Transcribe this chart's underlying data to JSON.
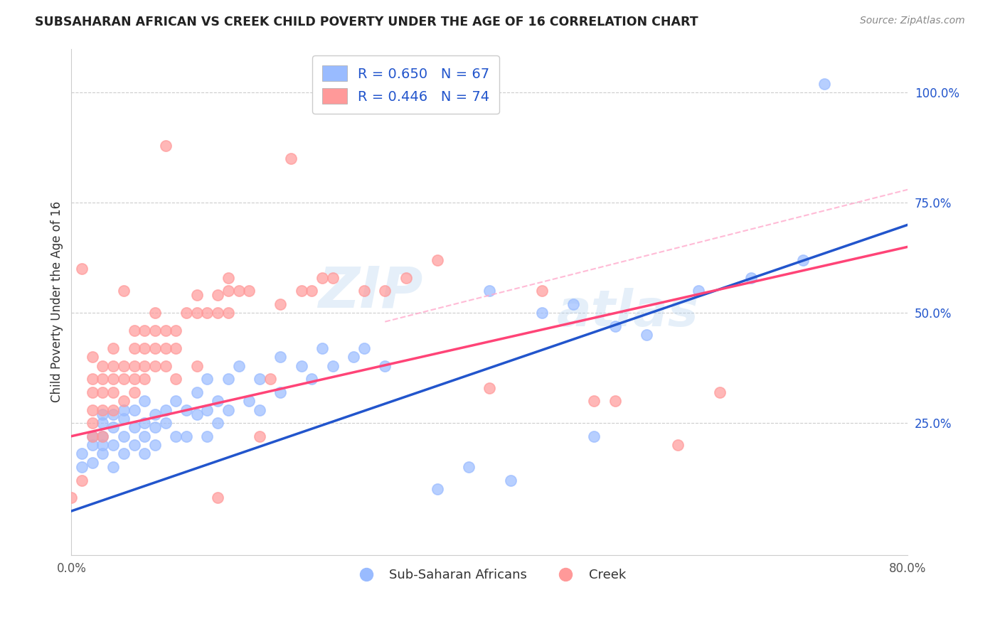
{
  "title": "SUBSAHARAN AFRICAN VS CREEK CHILD POVERTY UNDER THE AGE OF 16 CORRELATION CHART",
  "source": "Source: ZipAtlas.com",
  "ylabel": "Child Poverty Under the Age of 16",
  "xlim": [
    0.0,
    0.8
  ],
  "ylim": [
    -0.05,
    1.1
  ],
  "ytick_vals": [
    0.0,
    0.25,
    0.5,
    0.75,
    1.0
  ],
  "ytick_labels": [
    "",
    "25.0%",
    "50.0%",
    "75.0%",
    "100.0%"
  ],
  "xtick_vals": [
    0.0,
    0.1,
    0.2,
    0.3,
    0.4,
    0.5,
    0.6,
    0.7,
    0.8
  ],
  "xtick_labels": [
    "0.0%",
    "",
    "",
    "",
    "",
    "",
    "",
    "",
    "80.0%"
  ],
  "blue_color": "#99BBFF",
  "pink_color": "#FF9999",
  "blue_line_color": "#2255CC",
  "pink_line_color": "#FF4477",
  "pink_dash_color": "#FFAACC",
  "watermark_zip": "ZIP",
  "watermark_atlas": "atlas",
  "scatter_blue": [
    [
      0.01,
      0.15
    ],
    [
      0.01,
      0.18
    ],
    [
      0.02,
      0.16
    ],
    [
      0.02,
      0.2
    ],
    [
      0.02,
      0.22
    ],
    [
      0.03,
      0.18
    ],
    [
      0.03,
      0.22
    ],
    [
      0.03,
      0.25
    ],
    [
      0.03,
      0.27
    ],
    [
      0.03,
      0.2
    ],
    [
      0.04,
      0.2
    ],
    [
      0.04,
      0.24
    ],
    [
      0.04,
      0.27
    ],
    [
      0.04,
      0.15
    ],
    [
      0.05,
      0.22
    ],
    [
      0.05,
      0.26
    ],
    [
      0.05,
      0.18
    ],
    [
      0.05,
      0.28
    ],
    [
      0.06,
      0.24
    ],
    [
      0.06,
      0.2
    ],
    [
      0.06,
      0.28
    ],
    [
      0.07,
      0.25
    ],
    [
      0.07,
      0.22
    ],
    [
      0.07,
      0.3
    ],
    [
      0.07,
      0.18
    ],
    [
      0.08,
      0.27
    ],
    [
      0.08,
      0.24
    ],
    [
      0.08,
      0.2
    ],
    [
      0.09,
      0.28
    ],
    [
      0.09,
      0.25
    ],
    [
      0.1,
      0.22
    ],
    [
      0.1,
      0.3
    ],
    [
      0.11,
      0.28
    ],
    [
      0.11,
      0.22
    ],
    [
      0.12,
      0.32
    ],
    [
      0.12,
      0.27
    ],
    [
      0.13,
      0.35
    ],
    [
      0.13,
      0.28
    ],
    [
      0.13,
      0.22
    ],
    [
      0.14,
      0.3
    ],
    [
      0.14,
      0.25
    ],
    [
      0.15,
      0.35
    ],
    [
      0.15,
      0.28
    ],
    [
      0.16,
      0.38
    ],
    [
      0.17,
      0.3
    ],
    [
      0.18,
      0.35
    ],
    [
      0.18,
      0.28
    ],
    [
      0.2,
      0.4
    ],
    [
      0.2,
      0.32
    ],
    [
      0.22,
      0.38
    ],
    [
      0.23,
      0.35
    ],
    [
      0.24,
      0.42
    ],
    [
      0.25,
      0.38
    ],
    [
      0.27,
      0.4
    ],
    [
      0.28,
      0.42
    ],
    [
      0.3,
      0.38
    ],
    [
      0.35,
      0.1
    ],
    [
      0.38,
      0.15
    ],
    [
      0.4,
      0.55
    ],
    [
      0.42,
      0.12
    ],
    [
      0.45,
      0.5
    ],
    [
      0.48,
      0.52
    ],
    [
      0.5,
      0.22
    ],
    [
      0.52,
      0.47
    ],
    [
      0.55,
      0.45
    ],
    [
      0.6,
      0.55
    ],
    [
      0.65,
      0.58
    ],
    [
      0.7,
      0.62
    ],
    [
      0.72,
      1.02
    ]
  ],
  "scatter_pink": [
    [
      0.0,
      0.08
    ],
    [
      0.01,
      0.12
    ],
    [
      0.01,
      0.6
    ],
    [
      0.02,
      0.22
    ],
    [
      0.02,
      0.25
    ],
    [
      0.02,
      0.28
    ],
    [
      0.02,
      0.32
    ],
    [
      0.02,
      0.35
    ],
    [
      0.02,
      0.4
    ],
    [
      0.03,
      0.22
    ],
    [
      0.03,
      0.28
    ],
    [
      0.03,
      0.32
    ],
    [
      0.03,
      0.35
    ],
    [
      0.03,
      0.38
    ],
    [
      0.04,
      0.28
    ],
    [
      0.04,
      0.32
    ],
    [
      0.04,
      0.35
    ],
    [
      0.04,
      0.38
    ],
    [
      0.04,
      0.42
    ],
    [
      0.05,
      0.3
    ],
    [
      0.05,
      0.35
    ],
    [
      0.05,
      0.38
    ],
    [
      0.05,
      0.55
    ],
    [
      0.06,
      0.32
    ],
    [
      0.06,
      0.35
    ],
    [
      0.06,
      0.38
    ],
    [
      0.06,
      0.42
    ],
    [
      0.06,
      0.46
    ],
    [
      0.07,
      0.35
    ],
    [
      0.07,
      0.38
    ],
    [
      0.07,
      0.42
    ],
    [
      0.07,
      0.46
    ],
    [
      0.08,
      0.38
    ],
    [
      0.08,
      0.42
    ],
    [
      0.08,
      0.46
    ],
    [
      0.08,
      0.5
    ],
    [
      0.09,
      0.38
    ],
    [
      0.09,
      0.42
    ],
    [
      0.09,
      0.46
    ],
    [
      0.09,
      0.88
    ],
    [
      0.1,
      0.35
    ],
    [
      0.1,
      0.42
    ],
    [
      0.1,
      0.46
    ],
    [
      0.11,
      0.5
    ],
    [
      0.12,
      0.5
    ],
    [
      0.12,
      0.54
    ],
    [
      0.12,
      0.38
    ],
    [
      0.13,
      0.5
    ],
    [
      0.14,
      0.5
    ],
    [
      0.14,
      0.08
    ],
    [
      0.14,
      0.54
    ],
    [
      0.15,
      0.5
    ],
    [
      0.15,
      0.55
    ],
    [
      0.15,
      0.58
    ],
    [
      0.16,
      0.55
    ],
    [
      0.17,
      0.55
    ],
    [
      0.18,
      0.22
    ],
    [
      0.19,
      0.35
    ],
    [
      0.2,
      0.52
    ],
    [
      0.21,
      0.85
    ],
    [
      0.22,
      0.55
    ],
    [
      0.23,
      0.55
    ],
    [
      0.24,
      0.58
    ],
    [
      0.25,
      0.58
    ],
    [
      0.28,
      0.55
    ],
    [
      0.3,
      0.55
    ],
    [
      0.32,
      0.58
    ],
    [
      0.35,
      0.62
    ],
    [
      0.4,
      0.33
    ],
    [
      0.45,
      0.55
    ],
    [
      0.5,
      0.3
    ],
    [
      0.52,
      0.3
    ],
    [
      0.58,
      0.2
    ],
    [
      0.62,
      0.32
    ]
  ]
}
